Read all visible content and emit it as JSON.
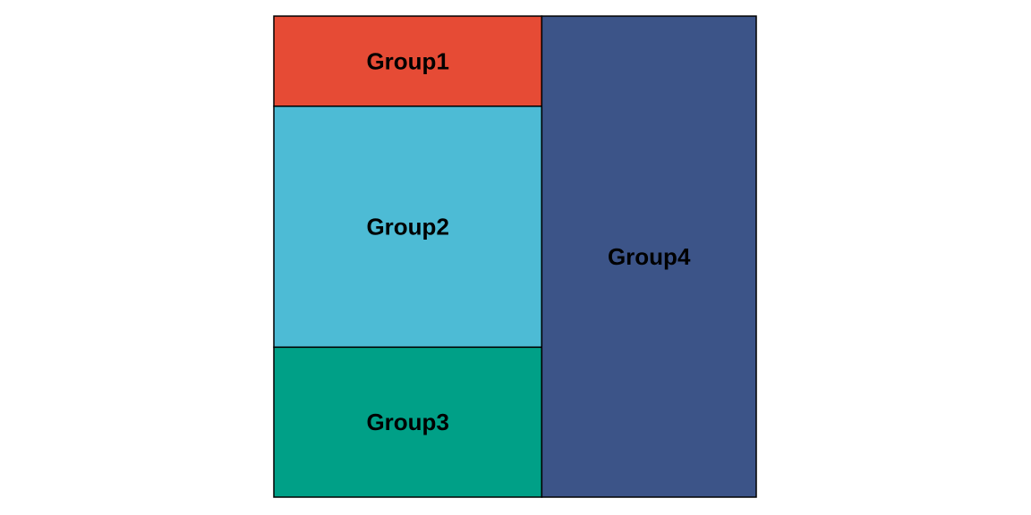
{
  "chart_data": {
    "type": "treemap",
    "series": [
      {
        "name": "Group1",
        "value": 9.2,
        "color": "#E64B35"
      },
      {
        "name": "Group2",
        "value": 24.6,
        "color": "#4DBBD5"
      },
      {
        "name": "Group3",
        "value": 15.3,
        "color": "#00A087"
      },
      {
        "name": "Group4",
        "value": 39.3,
        "color": "#3C5488"
      }
    ]
  }
}
